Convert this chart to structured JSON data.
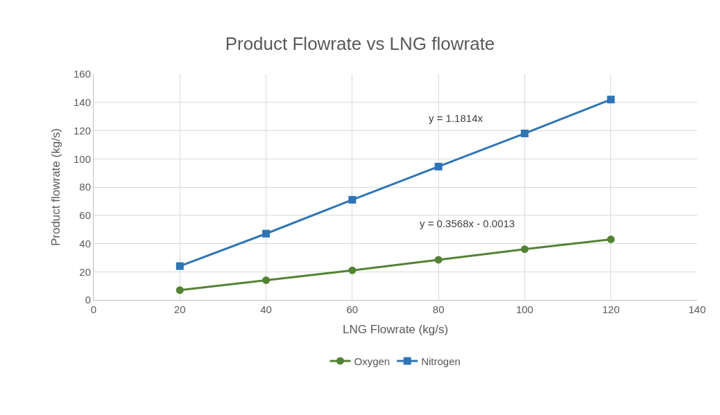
{
  "chart_data": {
    "type": "line",
    "title": "Product Flowrate vs LNG flowrate",
    "xlabel": "LNG Flowrate (kg/s)",
    "ylabel": "Product flowrate (kg/s)",
    "x": [
      20,
      40,
      60,
      80,
      100,
      120
    ],
    "series": [
      {
        "name": "Oxygen",
        "color": "#548235",
        "marker": "circle",
        "values": [
          7,
          14,
          21,
          28.5,
          36,
          43
        ]
      },
      {
        "name": "Nitrogen",
        "color": "#2e75b6",
        "marker": "square",
        "values": [
          24,
          47,
          71,
          94.5,
          118,
          142
        ]
      }
    ],
    "annotations": [
      "y = 1.1814x",
      "y = 0.3568x - 0.0013"
    ],
    "xlim": [
      0,
      140
    ],
    "xticks": [
      0,
      20,
      40,
      60,
      80,
      100,
      120,
      140
    ],
    "ylim": [
      0,
      160
    ],
    "yticks": [
      0,
      20,
      40,
      60,
      80,
      100,
      120,
      140,
      160
    ],
    "grid": true,
    "legend": "bottom",
    "line_style": "solid"
  }
}
